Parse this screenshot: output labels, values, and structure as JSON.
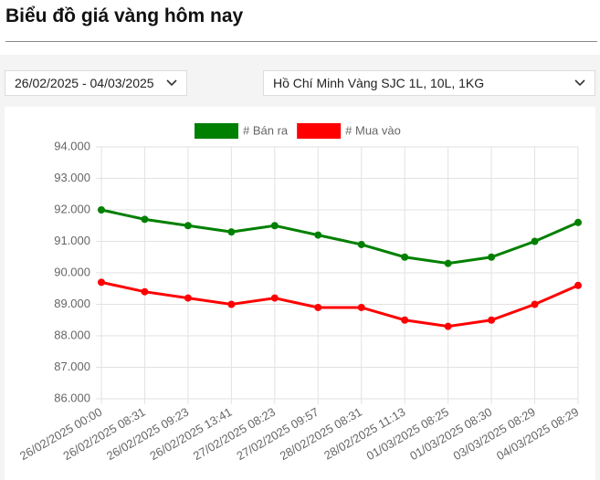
{
  "header": {
    "title": "Biểu đồ giá vàng hôm nay"
  },
  "filters": {
    "date_range": "26/02/2025 - 04/03/2025",
    "product": "Hồ Chí Minh Vàng SJC 1L, 10L, 1KG"
  },
  "chart_data": {
    "type": "line",
    "categories": [
      "26/02/2025 00:00",
      "26/02/2025 08:31",
      "26/02/2025 09:23",
      "26/02/2025 13:41",
      "27/02/2025 08:23",
      "27/02/2025 09:57",
      "28/02/2025 08:31",
      "28/02/2025 11:13",
      "01/03/2025 08:25",
      "01/03/2025 08:30",
      "03/03/2025 08:29",
      "04/03/2025 08:29"
    ],
    "series": [
      {
        "name": "# Bán ra",
        "color": "#008000",
        "values": [
          92000,
          91700,
          91500,
          91300,
          91500,
          91200,
          90900,
          90500,
          90300,
          90500,
          91000,
          91600
        ]
      },
      {
        "name": "# Mua vào",
        "color": "#ff0000",
        "values": [
          89700,
          89400,
          89200,
          89000,
          89200,
          88900,
          88900,
          88500,
          88300,
          88500,
          89000,
          89600
        ]
      }
    ],
    "ylim": [
      86000,
      94000
    ],
    "yticks": [
      {
        "value": 86000,
        "label": "86.000"
      },
      {
        "value": 87000,
        "label": "87.000"
      },
      {
        "value": 88000,
        "label": "88.000"
      },
      {
        "value": 89000,
        "label": "89.000"
      },
      {
        "value": 90000,
        "label": "90.000"
      },
      {
        "value": 91000,
        "label": "91.000"
      },
      {
        "value": 92000,
        "label": "92.000"
      },
      {
        "value": 93000,
        "label": "93.000"
      },
      {
        "value": 94000,
        "label": "94.000"
      }
    ],
    "grid": true
  }
}
